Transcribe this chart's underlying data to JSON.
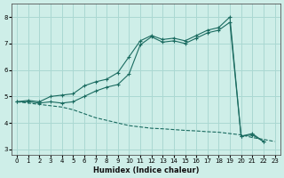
{
  "xlabel": "Humidex (Indice chaleur)",
  "ylabel": "",
  "background_color": "#ceeee8",
  "grid_color": "#aad8d2",
  "line_color": "#1a6b60",
  "xlim": [
    -0.5,
    23.5
  ],
  "ylim": [
    2.8,
    8.5
  ],
  "xticks": [
    0,
    1,
    2,
    3,
    4,
    5,
    6,
    7,
    8,
    9,
    10,
    11,
    12,
    13,
    14,
    15,
    16,
    17,
    18,
    19,
    20,
    21,
    22,
    23
  ],
  "yticks": [
    3,
    4,
    5,
    6,
    7,
    8
  ],
  "series": [
    {
      "x": [
        0,
        1,
        2,
        3,
        4,
        5,
        6,
        7,
        8,
        9,
        10,
        11,
        12,
        13,
        14,
        15,
        16,
        17,
        18,
        19,
        20,
        21,
        22
      ],
      "y": [
        4.8,
        4.85,
        4.8,
        5.0,
        5.05,
        5.1,
        5.4,
        5.55,
        5.65,
        5.9,
        6.5,
        7.1,
        7.3,
        7.15,
        7.2,
        7.1,
        7.3,
        7.5,
        7.6,
        8.0,
        3.5,
        3.6,
        3.3
      ],
      "marker": true,
      "dashed": false
    },
    {
      "x": [
        0,
        1,
        2,
        3,
        4,
        5,
        6,
        7,
        8,
        9,
        10,
        11,
        12,
        13,
        14,
        15,
        16,
        17,
        18,
        19,
        20,
        21,
        22
      ],
      "y": [
        4.8,
        4.8,
        4.75,
        4.8,
        4.75,
        4.8,
        5.0,
        5.2,
        5.35,
        5.45,
        5.85,
        6.95,
        7.25,
        7.05,
        7.1,
        7.0,
        7.2,
        7.4,
        7.5,
        7.8,
        3.5,
        3.55,
        3.3
      ],
      "marker": true,
      "dashed": false
    },
    {
      "x": [
        0,
        1,
        2,
        3,
        4,
        5,
        6,
        7,
        8,
        9,
        10,
        11,
        12,
        13,
        14,
        15,
        16,
        17,
        18,
        19,
        20,
        21,
        22,
        23
      ],
      "y": [
        4.8,
        4.75,
        4.7,
        4.65,
        4.6,
        4.5,
        4.35,
        4.2,
        4.1,
        4.0,
        3.9,
        3.85,
        3.8,
        3.78,
        3.75,
        3.72,
        3.7,
        3.67,
        3.65,
        3.6,
        3.55,
        3.45,
        3.38,
        3.3
      ],
      "marker": false,
      "dashed": true
    }
  ]
}
